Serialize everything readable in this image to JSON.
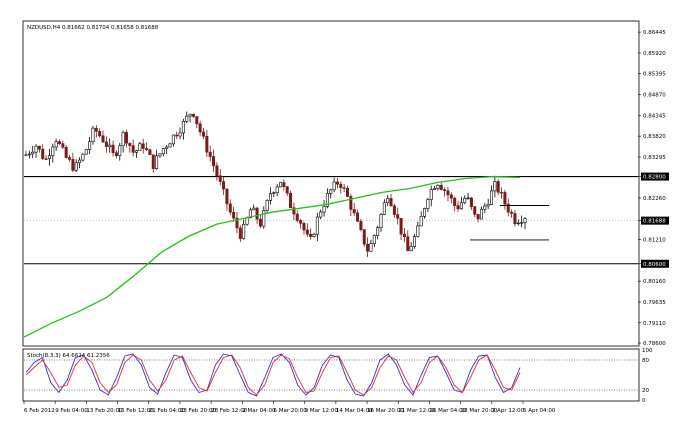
{
  "header": {
    "symbol_line": "NZDUSD,H4  0.81662 0.81704 0.81658 0.81688",
    "stoch_line": "Stoch(8,3,3) 64.6624 61.2356"
  },
  "colors": {
    "bull": "#000000",
    "bear": "#7a1a1a",
    "ma": "#22c41a",
    "stoch_main": "#3030d8",
    "stoch_signal": "#e03030",
    "level_line": "#000000",
    "price_tag": "#000000"
  },
  "chart_data": [
    {
      "type": "candlestick",
      "title": "NZDUSD,H4",
      "y_ticks": [
        "0.86445",
        "0.85920",
        "0.85395",
        "0.84870",
        "0.84345",
        "0.83820",
        "0.83295",
        "0.82800",
        "0.82260",
        "0.81688",
        "0.81210",
        "0.80600",
        "0.80160",
        "0.79635",
        "0.79110",
        "0.78600"
      ],
      "highlighted_levels": [
        "0.82800",
        "0.81688",
        "0.80600"
      ],
      "x_ticks": [
        "6 Feb 2012",
        "9 Feb 04:00",
        "13 Feb 20:00",
        "16 Feb 12:00",
        "21 Feb 04:00",
        "23 Feb 20:00",
        "28 Feb 12:00",
        "2 Mar 04:00",
        "6 Mar 20:00",
        "9 Mar 12:00",
        "14 Mar 04:00",
        "16 Mar 20:00",
        "21 Mar 12:00",
        "26 Mar 04:00",
        "28 Mar 20:00",
        "2 Apr 12:00",
        "5 Apr 04:00"
      ],
      "ylim": [
        0.7855,
        0.867
      ],
      "key_prices": [
        0.8335,
        0.836,
        0.832,
        0.838,
        0.833,
        0.83,
        0.834,
        0.84,
        0.837,
        0.833,
        0.839,
        0.834,
        0.836,
        0.831,
        0.835,
        0.838,
        0.841,
        0.845,
        0.838,
        0.832,
        0.825,
        0.818,
        0.813,
        0.82,
        0.816,
        0.824,
        0.827,
        0.821,
        0.817,
        0.811,
        0.819,
        0.824,
        0.827,
        0.822,
        0.815,
        0.809,
        0.816,
        0.824,
        0.817,
        0.809,
        0.814,
        0.823,
        0.827,
        0.824,
        0.82,
        0.823,
        0.817,
        0.821,
        0.826,
        0.821,
        0.817,
        0.818
      ],
      "moving_average": [
        0.7875,
        0.791,
        0.794,
        0.7975,
        0.803,
        0.809,
        0.813,
        0.816,
        0.8175,
        0.819,
        0.82,
        0.821,
        0.8225,
        0.824,
        0.825,
        0.8265,
        0.8275,
        0.828,
        0.8278
      ],
      "horizontal_levels": [
        0.828,
        0.806
      ],
      "local_lines": [
        0.8207,
        0.812
      ],
      "last_price": 0.81688
    },
    {
      "type": "line",
      "title": "Stoch(8,3,3)",
      "y_ticks": [
        "100",
        "80",
        "20",
        "0"
      ],
      "ylim": [
        0,
        100
      ],
      "levels": [
        80,
        20
      ],
      "series": [
        {
          "name": "main",
          "values": [
            55,
            75,
            85,
            35,
            15,
            40,
            85,
            90,
            60,
            20,
            10,
            45,
            88,
            92,
            70,
            25,
            12,
            55,
            90,
            85,
            40,
            15,
            20,
            70,
            92,
            88,
            50,
            15,
            8,
            45,
            85,
            92,
            75,
            30,
            10,
            25,
            70,
            90,
            85,
            40,
            12,
            8,
            35,
            80,
            92,
            70,
            30,
            10,
            50,
            85,
            88,
            55,
            20,
            15,
            60,
            88,
            90,
            45,
            15,
            25,
            65
          ]
        },
        {
          "name": "signal",
          "values": [
            50,
            65,
            80,
            55,
            25,
            30,
            70,
            88,
            75,
            35,
            15,
            30,
            75,
            90,
            80,
            40,
            18,
            40,
            80,
            88,
            55,
            25,
            18,
            55,
            85,
            90,
            65,
            25,
            10,
            30,
            75,
            90,
            82,
            45,
            15,
            18,
            55,
            85,
            88,
            55,
            20,
            10,
            25,
            65,
            88,
            80,
            45,
            15,
            35,
            75,
            88,
            65,
            30,
            15,
            45,
            80,
            90,
            60,
            25,
            20,
            55
          ]
        }
      ]
    }
  ]
}
